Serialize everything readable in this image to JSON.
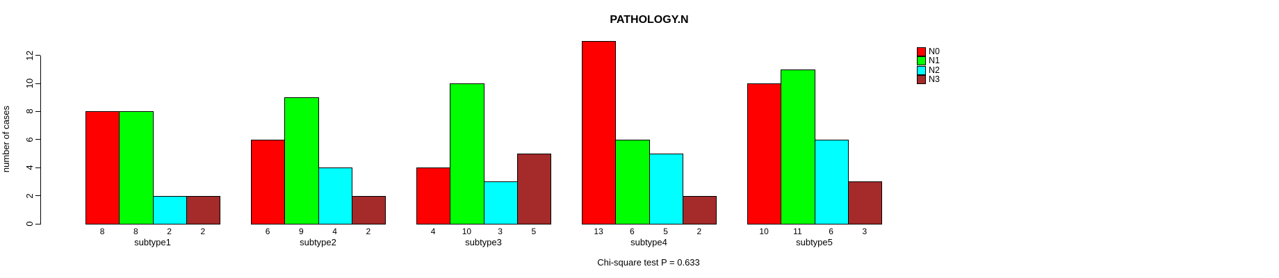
{
  "title": "PATHOLOGY.N",
  "footer": "Chi-square test P = 0.633",
  "y_axis": {
    "label": "number of cases",
    "ticks": [
      0,
      2,
      4,
      6,
      8,
      10,
      12
    ]
  },
  "legend": {
    "items": [
      {
        "label": "N0",
        "color": "#FF0000"
      },
      {
        "label": "N1",
        "color": "#00FF00"
      },
      {
        "label": "N2",
        "color": "#00FFFF"
      },
      {
        "label": "N3",
        "color": "#A52A2A"
      }
    ]
  },
  "chart_data": {
    "type": "bar",
    "title": "PATHOLOGY.N",
    "xlabel": "",
    "ylabel": "number of cases",
    "categories": [
      "subtype1",
      "subtype2",
      "subtype3",
      "subtype4",
      "subtype5"
    ],
    "series": [
      {
        "name": "N0",
        "color": "#FF0000",
        "values": [
          8,
          6,
          4,
          13,
          10
        ]
      },
      {
        "name": "N1",
        "color": "#00FF00",
        "values": [
          8,
          9,
          10,
          6,
          11
        ]
      },
      {
        "name": "N2",
        "color": "#00FFFF",
        "values": [
          2,
          4,
          3,
          5,
          6
        ]
      },
      {
        "name": "N3",
        "color": "#A52A2A",
        "values": [
          2,
          2,
          5,
          2,
          3
        ]
      }
    ],
    "yticks": [
      0,
      2,
      4,
      6,
      8,
      10,
      12
    ],
    "ylim": [
      0,
      13
    ],
    "grid": false,
    "bar_value_labels": true,
    "legend_position": "right-outside",
    "annotation": "Chi-square test P = 0.633"
  }
}
